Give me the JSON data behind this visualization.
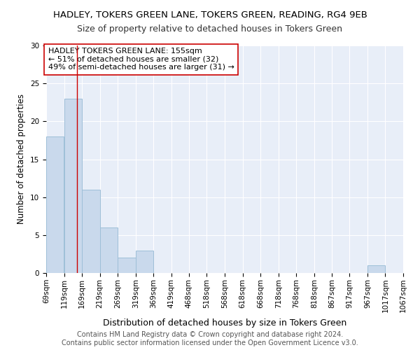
{
  "title": "HADLEY, TOKERS GREEN LANE, TOKERS GREEN, READING, RG4 9EB",
  "subtitle": "Size of property relative to detached houses in Tokers Green",
  "xlabel": "Distribution of detached houses by size in Tokers Green",
  "ylabel": "Number of detached properties",
  "bar_color": "#c9d9ec",
  "bar_edge_color": "#9ebfd8",
  "bg_color": "#e8eef8",
  "grid_color": "#ffffff",
  "vline_x": 155,
  "vline_color": "#cc0000",
  "bin_edges": [
    69,
    119,
    169,
    219,
    269,
    319,
    369,
    419,
    468,
    518,
    568,
    618,
    668,
    718,
    768,
    818,
    867,
    917,
    967,
    1017,
    1067
  ],
  "bin_counts": [
    18,
    23,
    11,
    6,
    2,
    3,
    0,
    0,
    0,
    0,
    0,
    0,
    0,
    0,
    0,
    0,
    0,
    0,
    1,
    0
  ],
  "annotation_text": "HADLEY TOKERS GREEN LANE: 155sqm\n← 51% of detached houses are smaller (32)\n49% of semi-detached houses are larger (31) →",
  "annotation_box_color": "#ffffff",
  "annotation_box_edge": "#cc0000",
  "ylim": [
    0,
    30
  ],
  "yticks": [
    0,
    5,
    10,
    15,
    20,
    25,
    30
  ],
  "footer": "Contains HM Land Registry data © Crown copyright and database right 2024.\nContains public sector information licensed under the Open Government Licence v3.0.",
  "title_fontsize": 9.5,
  "subtitle_fontsize": 9,
  "xlabel_fontsize": 9,
  "ylabel_fontsize": 8.5,
  "tick_fontsize": 7.5,
  "annotation_fontsize": 8,
  "footer_fontsize": 7
}
